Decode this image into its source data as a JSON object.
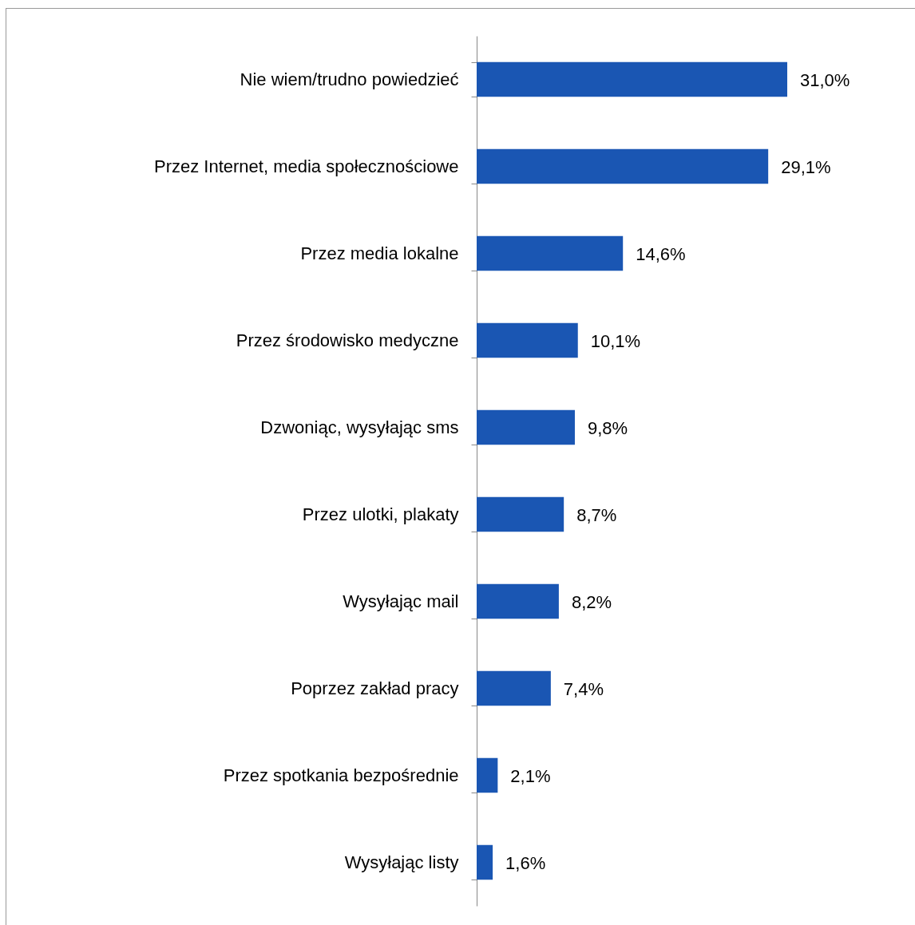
{
  "chart_data": {
    "type": "bar",
    "orientation": "horizontal",
    "color": "#1a56b3",
    "categories": [
      "Nie wiem/trudno powiedzieć",
      "Przez Internet, media społecznościowe",
      "Przez media lokalne",
      "Przez środowisko medyczne",
      "Dzwoniąc, wysyłając sms",
      "Przez ulotki, plakaty",
      "Wysyłając mail",
      "Poprzez zakład pracy",
      "Przez spotkania bezpośrednie",
      "Wysyłając listy"
    ],
    "values": [
      31.0,
      29.1,
      14.6,
      10.1,
      9.8,
      8.7,
      8.2,
      7.4,
      2.1,
      1.6
    ],
    "value_labels": [
      "31,0%",
      "29,1%",
      "14,6%",
      "10,1%",
      "9,8%",
      "8,7%",
      "8,2%",
      "7,4%",
      "2,1%",
      "1,6%"
    ]
  }
}
